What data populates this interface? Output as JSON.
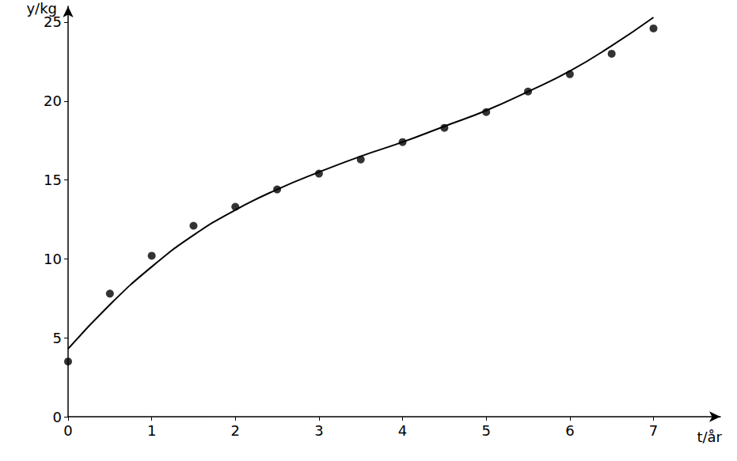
{
  "chart_data": {
    "type": "scatter",
    "x_label": "t/år",
    "y_label": "y/kg",
    "x": [
      0,
      0.5,
      1,
      1.5,
      2,
      2.5,
      3,
      3.5,
      4,
      4.5,
      5,
      5.5,
      6,
      6.5,
      7
    ],
    "series": [
      {
        "type": "scatter",
        "color": "#000000",
        "marker": "circle",
        "values": [
          3.5,
          7.8,
          10.2,
          12.1,
          13.3,
          14.4,
          15.4,
          16.3,
          17.4,
          18.3,
          19.3,
          20.6,
          21.7,
          23.0,
          24.6
        ]
      },
      {
        "type": "line",
        "color": "#000000",
        "line_style": "solid",
        "values": [
          4.3,
          7.1,
          9.5,
          11.5,
          13.1,
          14.4,
          15.5,
          16.5,
          17.4,
          18.4,
          19.4,
          20.6,
          21.9,
          23.5,
          25.3
        ]
      }
    ],
    "xlim": [
      0,
      7.8
    ],
    "xticks": [
      0,
      1,
      2,
      3,
      4,
      5,
      6,
      7
    ],
    "ylim": [
      0,
      26
    ],
    "yticks": [
      0,
      5,
      10,
      15,
      20,
      25
    ],
    "grid": false
  }
}
